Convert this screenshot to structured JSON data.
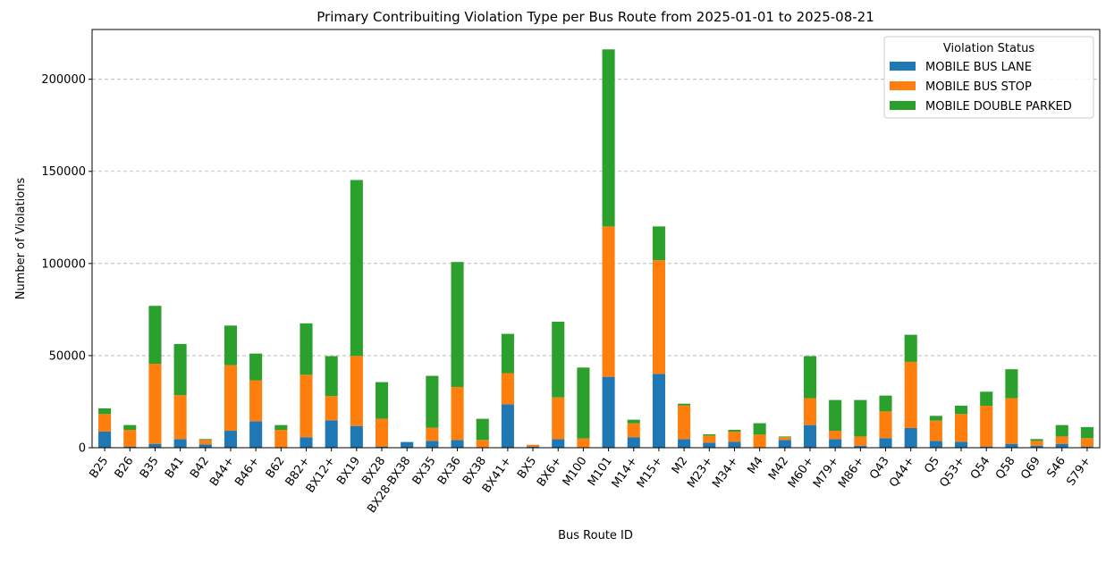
{
  "chart_data": {
    "type": "bar",
    "stacked": true,
    "title": "Primary Contribuiting Violation Type per Bus Route from 2025-01-01 to 2025-08-21",
    "xlabel": "Bus Route ID",
    "ylabel": "Number of Violations",
    "ylim": [
      0,
      227000
    ],
    "yticks": [
      0,
      50000,
      100000,
      150000,
      200000
    ],
    "grid": "y-dashed",
    "legend_title": "Violation Status",
    "legend_position": "top-right",
    "categories": [
      "B25",
      "B26",
      "B35",
      "B41",
      "B42",
      "B44+",
      "B46+",
      "B62",
      "B82+",
      "BX12+",
      "BX19",
      "BX28",
      "BX28-BX38",
      "BX35",
      "BX36",
      "BX38",
      "BX41+",
      "BX5",
      "BX6+",
      "M100",
      "M101",
      "M14+",
      "M15+",
      "M2",
      "M23+",
      "M34+",
      "M4",
      "M42",
      "M60+",
      "M79+",
      "M86+",
      "Q43",
      "Q44+",
      "Q5",
      "Q53+",
      "Q54",
      "Q58",
      "Q69",
      "S46",
      "S79+"
    ],
    "series": [
      {
        "name": "MOBILE BUS LANE",
        "color": "#1f77b4",
        "values": [
          8740,
          650,
          2100,
          4700,
          1800,
          9200,
          14400,
          0,
          5700,
          14900,
          11800,
          650,
          3100,
          3700,
          4200,
          0,
          23500,
          650,
          4700,
          0,
          38500,
          5700,
          40100,
          4700,
          2750,
          3200,
          0,
          4200,
          12300,
          4700,
          1100,
          5200,
          10700,
          3700,
          3200,
          650,
          2100,
          1100,
          2100,
          650
        ]
      },
      {
        "name": "MOBILE BUS STOP",
        "color": "#ff7f0e",
        "values": [
          9540,
          9050,
          43500,
          23800,
          2400,
          35600,
          22200,
          9700,
          33900,
          13100,
          38000,
          15050,
          0,
          7100,
          28800,
          4200,
          17000,
          950,
          22600,
          5000,
          81600,
          7600,
          61700,
          18300,
          3850,
          5500,
          7100,
          1500,
          14600,
          4500,
          5000,
          14500,
          35900,
          11000,
          15100,
          22150,
          24800,
          2600,
          4000,
          4550
        ]
      },
      {
        "name": "MOBILE DOUBLE PARKED",
        "color": "#2ca02c",
        "values": [
          3080,
          2600,
          31400,
          27800,
          500,
          21500,
          14500,
          2600,
          27900,
          21700,
          95500,
          19900,
          0,
          28200,
          67800,
          11500,
          21300,
          0,
          41100,
          38500,
          96100,
          1900,
          18300,
          900,
          700,
          1000,
          6200,
          400,
          22800,
          16700,
          19800,
          8600,
          14700,
          2600,
          4500,
          7600,
          15700,
          1000,
          6200,
          6000
        ]
      }
    ]
  }
}
